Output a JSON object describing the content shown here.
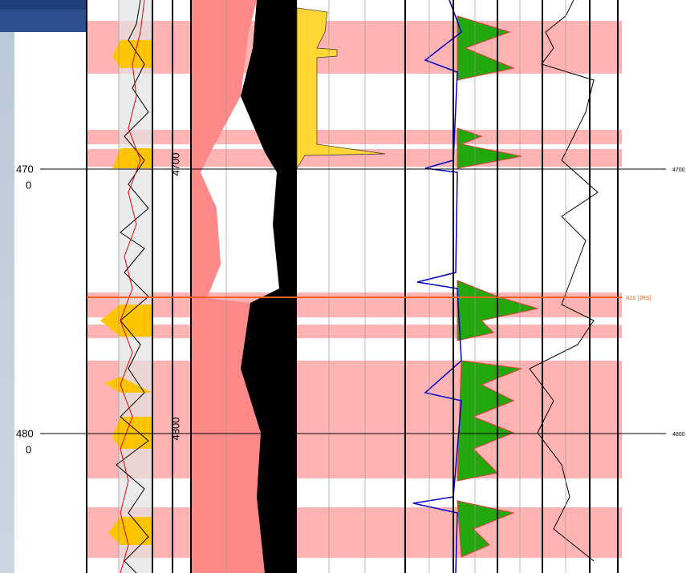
{
  "depth_labels": [
    {
      "top": "470",
      "bottom": "0"
    },
    {
      "top": "480",
      "bottom": "0"
    }
  ],
  "track_depths": [
    "4700",
    "4800"
  ],
  "right_depths": [
    "4700",
    "4800"
  ],
  "marker": "A10 [JRS]"
}
